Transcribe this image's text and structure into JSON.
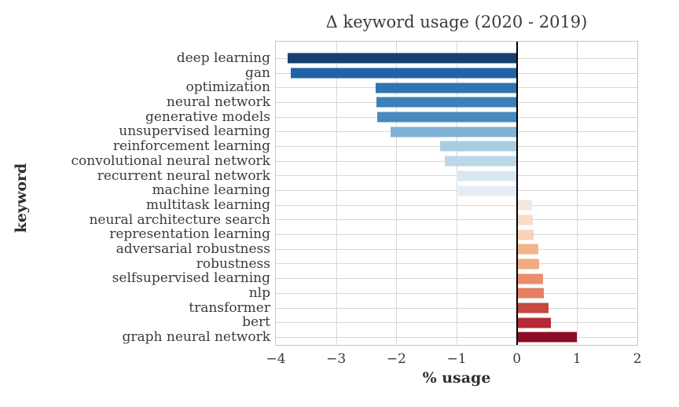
{
  "chart_data": {
    "type": "bar",
    "orientation": "horizontal",
    "title": "Δ keyword usage (2020 - 2019)",
    "xlabel": "% usage",
    "ylabel": "keyword",
    "xlim": [
      -4,
      2
    ],
    "xticks": [
      -4,
      -3,
      -2,
      -1,
      0,
      1,
      2
    ],
    "grid": true,
    "zero_line_x": 0,
    "legend": "none",
    "categories": [
      "deep learning",
      "gan",
      "optimization",
      "neural network",
      "generative models",
      "unsupervised learning",
      "reinforcement learning",
      "convolutional neural network",
      "recurrent neural network",
      "machine learning",
      "multitask learning",
      "neural architecture search",
      "representation learning",
      "adversarial robustness",
      "robustness",
      "selfsupervised learning",
      "nlp",
      "transformer",
      "bert",
      "graph neural network"
    ],
    "values": [
      -3.8,
      -3.75,
      -2.35,
      -2.33,
      -2.32,
      -2.1,
      -1.27,
      -1.19,
      -1.0,
      -0.97,
      0.25,
      0.26,
      0.28,
      0.36,
      0.37,
      0.44,
      0.45,
      0.53,
      0.56,
      1.0
    ],
    "bar_colors": [
      "#17406f",
      "#2164a5",
      "#3174b1",
      "#3d80b9",
      "#4889be",
      "#7fb2d5",
      "#a9cce1",
      "#bcd7e8",
      "#dbe7f0",
      "#e6ecf2",
      "#f4e7dd",
      "#f8dcc8",
      "#f8d3ba",
      "#f3b38c",
      "#f1a981",
      "#ea8d6b",
      "#e68063",
      "#c64841",
      "#b52938",
      "#8d0b26"
    ],
    "colors": {
      "grid": "#d7d7d7",
      "frame": "#c6c6c6",
      "zero_line": "#000000",
      "text": "#3a3a3a",
      "background": "#ffffff"
    }
  }
}
